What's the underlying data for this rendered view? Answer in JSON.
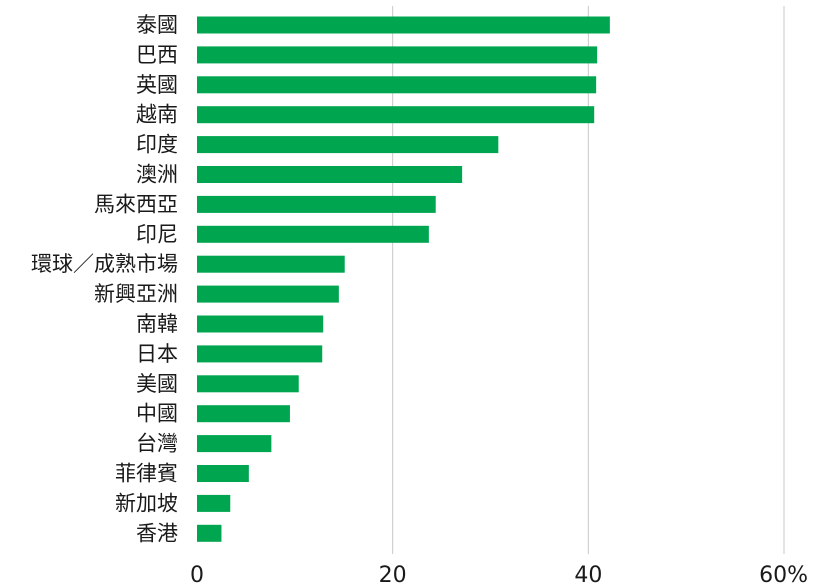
{
  "chart_data": {
    "type": "bar",
    "orientation": "horizontal",
    "categories": [
      "泰國",
      "巴西",
      "英國",
      "越南",
      "印度",
      "澳洲",
      "馬來西亞",
      "印尼",
      "環球／成熟市場",
      "新興亞洲",
      "南韓",
      "日本",
      "美國",
      "中國",
      "台灣",
      "菲律賓",
      "新加坡",
      "香港"
    ],
    "values": [
      42.2,
      40.9,
      40.8,
      40.6,
      30.8,
      27.1,
      24.4,
      23.7,
      15.1,
      14.5,
      12.9,
      12.8,
      10.4,
      9.5,
      7.6,
      5.3,
      3.4,
      2.5
    ],
    "xticks": [
      "0",
      "20",
      "40",
      "60%"
    ],
    "xlim": [
      0,
      60
    ],
    "grid": "vertical",
    "bar_color": "#00a550"
  }
}
